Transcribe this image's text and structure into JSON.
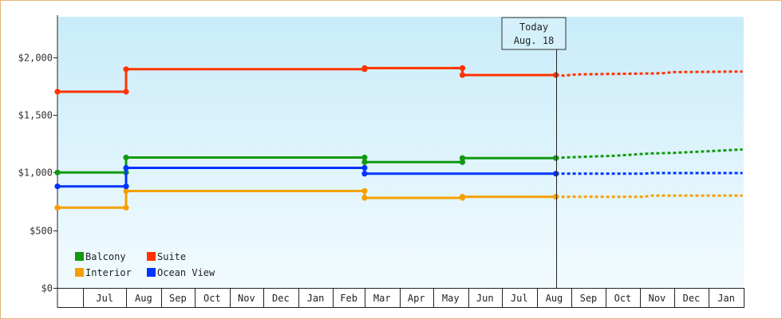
{
  "chart_data": {
    "type": "line",
    "x_unit": "date",
    "ylim": [
      0,
      2350
    ],
    "y_ticks": [
      {
        "value": 0,
        "label": "$0"
      },
      {
        "value": 500,
        "label": "$500"
      },
      {
        "value": 1000,
        "label": "$1,000"
      },
      {
        "value": 1500,
        "label": "$1,500"
      },
      {
        "value": 2000,
        "label": "$2,000"
      }
    ],
    "x_range": [
      "2021-06-01",
      "2023-01-31"
    ],
    "month_ticks": [
      {
        "label": "Jul",
        "start": "2021-06-24",
        "end": "2021-07-31"
      },
      {
        "label": "Aug",
        "start": "2021-08-01",
        "end": "2021-08-31"
      },
      {
        "label": "Sep",
        "start": "2021-09-01",
        "end": "2021-09-30"
      },
      {
        "label": "Oct",
        "start": "2021-10-01",
        "end": "2021-10-31"
      },
      {
        "label": "Nov",
        "start": "2021-11-01",
        "end": "2021-11-30"
      },
      {
        "label": "Dec",
        "start": "2021-12-01",
        "end": "2021-12-31"
      },
      {
        "label": "Jan",
        "start": "2022-01-01",
        "end": "2022-01-31"
      },
      {
        "label": "Feb",
        "start": "2022-02-01",
        "end": "2022-02-28"
      },
      {
        "label": "Mar",
        "start": "2022-03-01",
        "end": "2022-03-31"
      },
      {
        "label": "Apr",
        "start": "2022-04-01",
        "end": "2022-04-30"
      },
      {
        "label": "May",
        "start": "2022-05-01",
        "end": "2022-05-31"
      },
      {
        "label": "Jun",
        "start": "2022-06-01",
        "end": "2022-06-30"
      },
      {
        "label": "Jul",
        "start": "2022-07-01",
        "end": "2022-07-31"
      },
      {
        "label": "Aug",
        "start": "2022-08-01",
        "end": "2022-08-31"
      },
      {
        "label": "Sep",
        "start": "2022-09-01",
        "end": "2022-09-30"
      },
      {
        "label": "Oct",
        "start": "2022-10-01",
        "end": "2022-10-31"
      },
      {
        "label": "Nov",
        "start": "2022-11-01",
        "end": "2022-11-30"
      },
      {
        "label": "Dec",
        "start": "2022-12-01",
        "end": "2022-12-31"
      },
      {
        "label": "Jan",
        "start": "2023-01-01",
        "end": "2023-01-31"
      }
    ],
    "today": {
      "line1": "Today",
      "line2": "Aug. 18",
      "date": "2022-08-18"
    },
    "series": [
      {
        "name": "Balcony",
        "color": "#119911",
        "points": [
          [
            "2021-06-01",
            1000
          ],
          [
            "2021-08-01",
            1000
          ],
          [
            "2021-08-01",
            1130
          ],
          [
            "2022-03-01",
            1130
          ],
          [
            "2022-03-01",
            1090
          ],
          [
            "2022-05-27",
            1090
          ],
          [
            "2022-05-27",
            1125
          ],
          [
            "2022-08-18",
            1125
          ]
        ],
        "markers": [
          [
            "2021-06-01",
            1000
          ],
          [
            "2021-08-01",
            1000
          ],
          [
            "2021-08-01",
            1130
          ],
          [
            "2022-03-01",
            1130
          ],
          [
            "2022-03-01",
            1090
          ],
          [
            "2022-05-27",
            1090
          ],
          [
            "2022-05-27",
            1125
          ],
          [
            "2022-08-18",
            1125
          ]
        ],
        "forecast": [
          [
            "2022-08-18",
            1125
          ],
          [
            "2022-08-25",
            1130
          ],
          [
            "2022-10-10",
            1145
          ],
          [
            "2022-11-10",
            1165
          ],
          [
            "2022-12-01",
            1170
          ],
          [
            "2023-01-01",
            1185
          ],
          [
            "2023-01-31",
            1200
          ]
        ]
      },
      {
        "name": "Suite",
        "color": "#ff3300",
        "points": [
          [
            "2021-06-01",
            1700
          ],
          [
            "2021-08-01",
            1700
          ],
          [
            "2021-08-01",
            1895
          ],
          [
            "2022-03-01",
            1895
          ],
          [
            "2022-03-01",
            1905
          ],
          [
            "2022-05-27",
            1905
          ],
          [
            "2022-05-27",
            1845
          ],
          [
            "2022-08-18",
            1845
          ]
        ],
        "markers": [
          [
            "2021-06-01",
            1700
          ],
          [
            "2021-08-01",
            1700
          ],
          [
            "2021-08-01",
            1895
          ],
          [
            "2022-03-01",
            1895
          ],
          [
            "2022-03-01",
            1905
          ],
          [
            "2022-05-27",
            1905
          ],
          [
            "2022-05-27",
            1845
          ],
          [
            "2022-08-18",
            1845
          ]
        ],
        "forecast": [
          [
            "2022-08-18",
            1845
          ],
          [
            "2022-08-25",
            1840
          ],
          [
            "2022-09-05",
            1850
          ],
          [
            "2022-11-20",
            1860
          ],
          [
            "2022-12-01",
            1870
          ],
          [
            "2023-01-31",
            1875
          ]
        ]
      },
      {
        "name": "Interior",
        "color": "#f5a000",
        "points": [
          [
            "2021-06-01",
            695
          ],
          [
            "2021-08-01",
            695
          ],
          [
            "2021-08-01",
            840
          ],
          [
            "2022-03-01",
            840
          ],
          [
            "2022-03-01",
            780
          ],
          [
            "2022-05-27",
            780
          ],
          [
            "2022-05-27",
            790
          ],
          [
            "2022-08-18",
            790
          ]
        ],
        "markers": [
          [
            "2021-06-01",
            695
          ],
          [
            "2021-08-01",
            695
          ],
          [
            "2021-08-01",
            840
          ],
          [
            "2022-03-01",
            840
          ],
          [
            "2022-03-01",
            780
          ],
          [
            "2022-05-27",
            780
          ],
          [
            "2022-05-27",
            790
          ],
          [
            "2022-08-18",
            790
          ]
        ],
        "forecast": [
          [
            "2022-08-18",
            790
          ],
          [
            "2022-11-05",
            790
          ],
          [
            "2022-11-10",
            800
          ],
          [
            "2023-01-31",
            800
          ]
        ]
      },
      {
        "name": "Ocean View",
        "color": "#0033ff",
        "points": [
          [
            "2021-06-01",
            880
          ],
          [
            "2021-08-01",
            880
          ],
          [
            "2021-08-01",
            1040
          ],
          [
            "2022-03-01",
            1040
          ],
          [
            "2022-03-01",
            990
          ],
          [
            "2022-08-18",
            990
          ]
        ],
        "markers": [
          [
            "2021-06-01",
            880
          ],
          [
            "2021-08-01",
            880
          ],
          [
            "2021-08-01",
            1040
          ],
          [
            "2022-03-01",
            1040
          ],
          [
            "2022-03-01",
            990
          ],
          [
            "2022-08-18",
            990
          ]
        ],
        "forecast": [
          [
            "2022-08-18",
            990
          ],
          [
            "2022-11-05",
            990
          ],
          [
            "2022-11-10",
            995
          ],
          [
            "2023-01-31",
            995
          ]
        ]
      }
    ],
    "legend": {
      "placement": "bottom-left",
      "order": [
        "Balcony",
        "Suite",
        "Interior",
        "Ocean View"
      ]
    }
  }
}
